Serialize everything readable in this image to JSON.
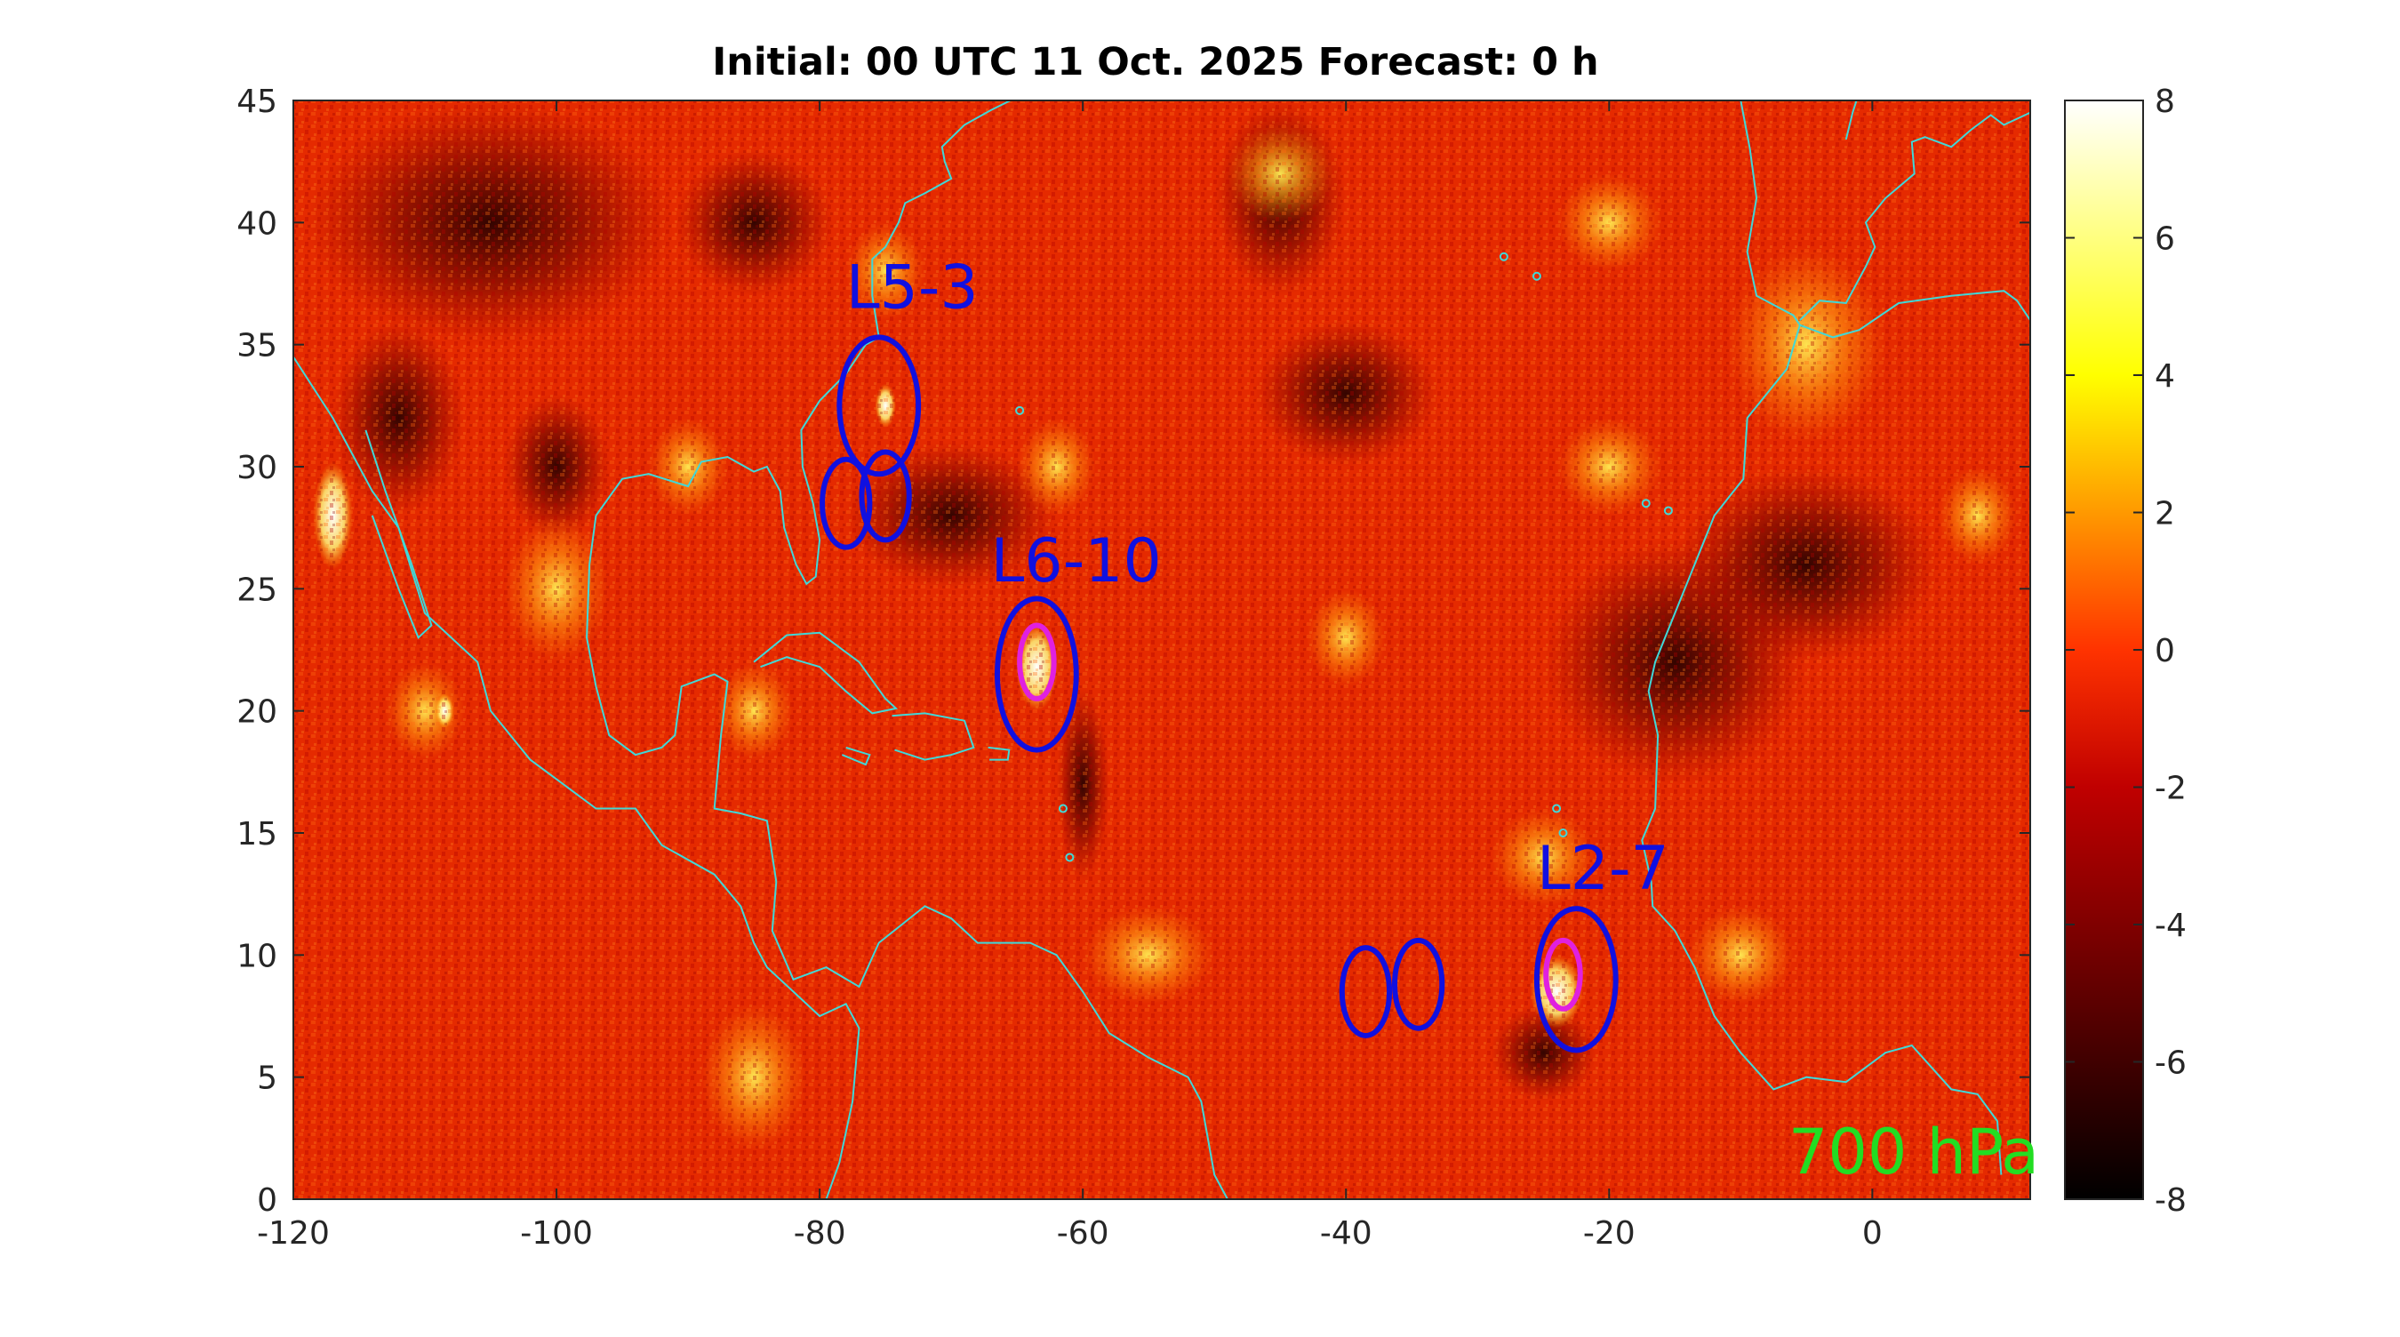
{
  "chart_data": {
    "type": "heatmap",
    "title": "Initial: 00 UTC 11 Oct. 2025 Forecast: 0 h",
    "level_label": "700 hPa",
    "xlim": [
      -120,
      12
    ],
    "ylim": [
      0,
      45
    ],
    "x_ticks": [
      -120,
      -100,
      -80,
      -60,
      -40,
      -20,
      0
    ],
    "y_ticks": [
      0,
      5,
      10,
      15,
      20,
      25,
      30,
      35,
      40,
      45
    ],
    "colorbar": {
      "min": -8,
      "max": 8,
      "ticks": [
        8,
        6,
        4,
        2,
        0,
        -2,
        -4,
        -6,
        -8
      ],
      "colormap": "hot"
    },
    "colors": {
      "title": "#000000",
      "coast": "#40d8d8",
      "system": "#1010e0",
      "core": "#e020e0",
      "level": "#22dd22"
    },
    "systems": [
      {
        "label": "L5-3",
        "lon": -75.5,
        "lat": 32.5,
        "label_lon": -78,
        "label_lat": 36.5,
        "rx": 3.0,
        "ry": 2.8
      },
      {
        "label": "L6-10",
        "lon": -63.5,
        "lat": 21.5,
        "label_lon": -67,
        "label_lat": 25.3,
        "rx": 3.0,
        "ry": 3.1
      },
      {
        "label": "L2-7",
        "lon": -22.5,
        "lat": 9.0,
        "label_lon": -25.5,
        "label_lat": 12.7,
        "rx": 3.0,
        "ry": 2.9
      }
    ],
    "extra_circles": [
      {
        "lon": -78.0,
        "lat": 28.5,
        "rx": 1.8,
        "ry": 1.8
      },
      {
        "lon": -75.0,
        "lat": 28.8,
        "rx": 1.8,
        "ry": 1.8
      },
      {
        "lon": -38.5,
        "lat": 8.5,
        "rx": 1.8,
        "ry": 1.8
      },
      {
        "lon": -34.5,
        "lat": 8.8,
        "rx": 1.8,
        "ry": 1.8
      }
    ],
    "inner_circles": [
      {
        "lon": -63.5,
        "lat": 22.0,
        "rx": 1.3,
        "ry": 1.5
      },
      {
        "lon": -23.5,
        "lat": 9.2,
        "rx": 1.3,
        "ry": 1.4
      }
    ]
  }
}
